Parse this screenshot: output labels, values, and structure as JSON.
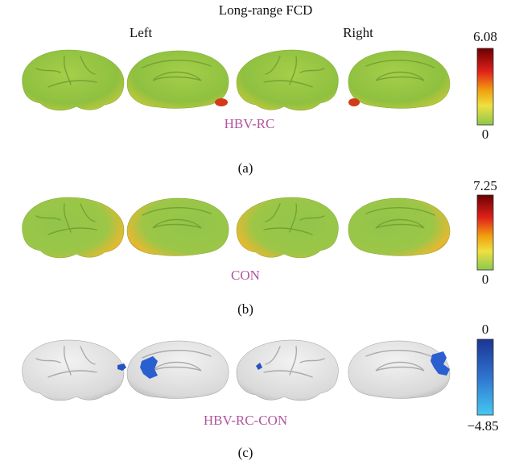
{
  "header": {
    "title": "Long-range FCD",
    "left": "Left",
    "right": "Right"
  },
  "panels": [
    {
      "group": "HBV-RC",
      "label": "(a)",
      "colorbar": {
        "max": "6.08",
        "min": "0"
      }
    },
    {
      "group": "CON",
      "label": "(b)",
      "colorbar": {
        "max": "7.25",
        "min": "0"
      }
    },
    {
      "group": "HBV-RC-CON",
      "label": "(c)",
      "colorbar": {
        "max": "0",
        "min": "−4.85"
      }
    }
  ]
}
